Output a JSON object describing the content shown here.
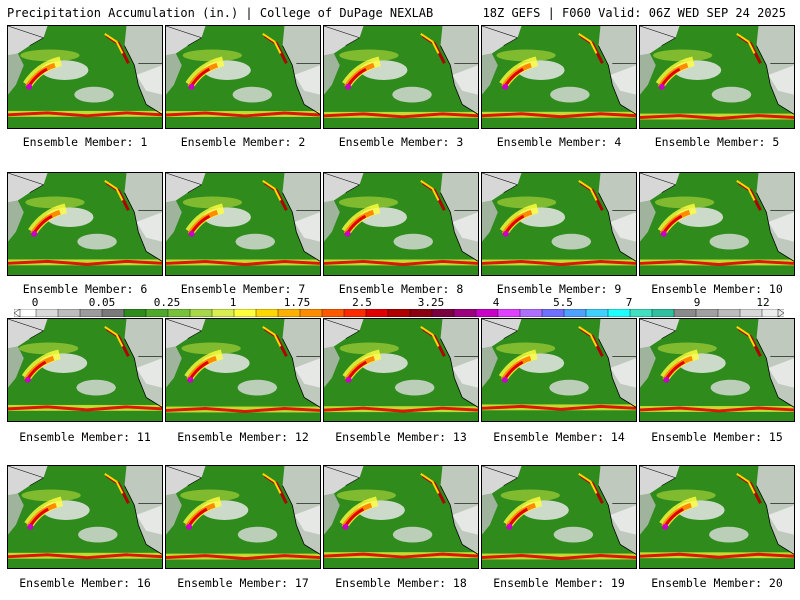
{
  "header": {
    "title_left": "Precipitation Accumulation (in.) | College of DuPage NEXLAB",
    "title_right": "18Z GEFS | F060 Valid: 06Z WED SEP 24 2025"
  },
  "members": [
    "Ensemble Member: 1",
    "Ensemble Member: 2",
    "Ensemble Member: 3",
    "Ensemble Member: 4",
    "Ensemble Member: 5",
    "Ensemble Member: 6",
    "Ensemble Member: 7",
    "Ensemble Member: 8",
    "Ensemble Member: 9",
    "Ensemble Member: 10",
    "Ensemble Member: 11",
    "Ensemble Member: 12",
    "Ensemble Member: 13",
    "Ensemble Member: 14",
    "Ensemble Member: 15",
    "Ensemble Member: 16",
    "Ensemble Member: 17",
    "Ensemble Member: 18",
    "Ensemble Member: 19",
    "Ensemble Member: 20"
  ],
  "colorbar": {
    "ticks": [
      "0",
      "0.05",
      "0.25",
      "1",
      "1.75",
      "2.5",
      "3.25",
      "4",
      "5.5",
      "7",
      "9",
      "12"
    ],
    "colors": [
      "#ffffff",
      "#d9d9d9",
      "#bdbdbd",
      "#9c9c9c",
      "#7a7a7a",
      "#2e8b1c",
      "#4fa72b",
      "#77c23a",
      "#a8d84a",
      "#d9ef4f",
      "#ffff3c",
      "#ffd700",
      "#ffb000",
      "#ff8c00",
      "#ff5a00",
      "#ff2a00",
      "#e00000",
      "#b00000",
      "#8b0010",
      "#7a0040",
      "#9b007f",
      "#c800c8",
      "#e040ff",
      "#b070ff",
      "#6f70ff",
      "#4fa0ff",
      "#40d0ff",
      "#20ffff",
      "#40e0c0",
      "#30c0a0",
      "#8a8a8a",
      "#a0a0a0",
      "#bcbcbc",
      "#d8d8d8",
      "#ececec"
    ]
  },
  "style": {
    "land_green": "#2e8b1c",
    "cloud_white": "#e6e6e6"
  }
}
